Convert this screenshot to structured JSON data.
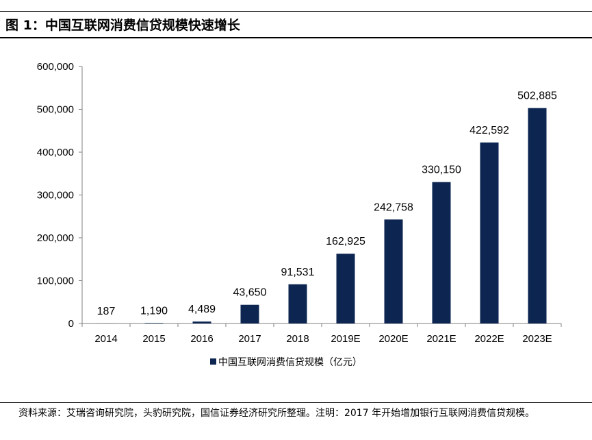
{
  "header": {
    "title": "图 1：中国互联网消费信贷规模快速增长"
  },
  "chart_data": {
    "type": "bar",
    "title": "",
    "xlabel": "",
    "ylabel": "",
    "categories": [
      "2014",
      "2015",
      "2016",
      "2017",
      "2018",
      "2019E",
      "2020E",
      "2021E",
      "2022E",
      "2023E"
    ],
    "series": [
      {
        "name": "中国互联网消费信贷规模（亿元）",
        "values": [
          187,
          1190,
          4489,
          43650,
          91531,
          162925,
          242758,
          330150,
          422592,
          502885
        ],
        "value_labels": [
          "187",
          "1,190",
          "4,489",
          "43,650",
          "91,531",
          "162,925",
          "242,758",
          "330,150",
          "422,592",
          "502,885"
        ],
        "color": "#0d2651"
      }
    ],
    "ylim": [
      0,
      600000
    ],
    "yticks": [
      0,
      100000,
      200000,
      300000,
      400000,
      500000,
      600000
    ],
    "ytick_labels": [
      "0",
      "100,000",
      "200,000",
      "300,000",
      "400,000",
      "500,000",
      "600,000"
    ],
    "grid": false,
    "legend_position": "bottom"
  },
  "footer": {
    "source": "资料来源：艾瑞咨询研究院，头豹研究院，国信证券经济研究所整理。注明：2017 年开始增加银行互联网消费信贷规模。"
  }
}
